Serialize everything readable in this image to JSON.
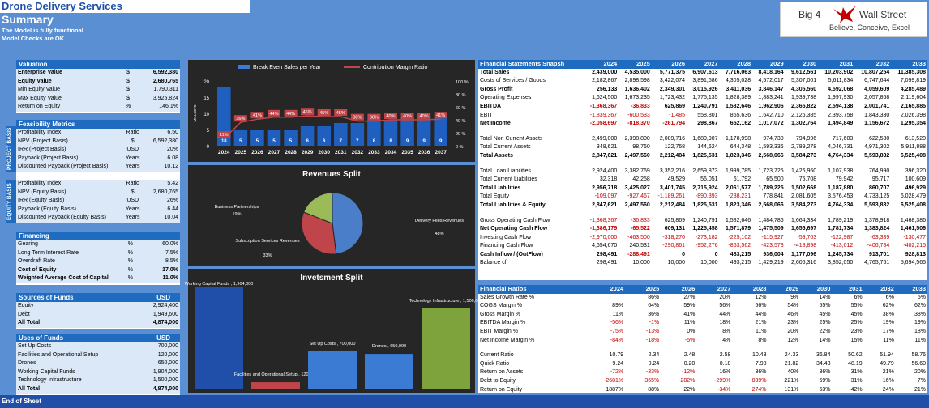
{
  "header": {
    "title": "Drone Delivery Services",
    "subtitle": "Summary",
    "note1": "The Model is fully functional",
    "note2": "Model Checks are OK"
  },
  "logo": {
    "left": "Big 4",
    "right": "Wall Street",
    "tagline": "Believe, Conceive, Excel"
  },
  "footer": "End of Sheet",
  "valuation": {
    "title": "Valuation",
    "rows": [
      {
        "label": "Enterprise Value",
        "unit": "$",
        "value": "6,592,380"
      },
      {
        "label": "Equity Value",
        "unit": "$",
        "value": "2,680,765"
      },
      {
        "label": "Min Equity Value",
        "unit": "$",
        "value": "1,790,311"
      },
      {
        "label": "Max Equity Value",
        "unit": "$",
        "value": "3,925,824"
      },
      {
        "label": "Return on Equity",
        "unit": "%",
        "value": "146.1%"
      }
    ]
  },
  "feasibility": {
    "title": "Feasibility Metrics",
    "project_label": "PROJECT BASIS",
    "equity_label": "EQUITY BASIS",
    "project": [
      {
        "label": "Profitability Index",
        "unit": "Ratio",
        "value": "6.50"
      },
      {
        "label": "NPV (Project Basis)",
        "unit": "$",
        "value": "6,592,380"
      },
      {
        "label": "IRR (Project Basis)",
        "unit": "USD",
        "value": "20%"
      },
      {
        "label": "Payback  (Project Basis)",
        "unit": "Years",
        "value": "6.08"
      },
      {
        "label": "Discounted Payback (Project Basis)",
        "unit": "Years",
        "value": "10.12"
      }
    ],
    "equity": [
      {
        "label": "Profitability Index",
        "unit": "Ratio",
        "value": "5.42"
      },
      {
        "label": "NPV (Equity Basis)",
        "unit": "$",
        "value": "2,680,765"
      },
      {
        "label": "IRR (Equity Basis)",
        "unit": "USD",
        "value": "26%"
      },
      {
        "label": "Payback  (Equity Basis)",
        "unit": "Years",
        "value": "6.44"
      },
      {
        "label": "Discounted Payback  (Equity Basis)",
        "unit": "Years",
        "value": "10.04"
      }
    ]
  },
  "financing": {
    "title": "Financing",
    "rows": [
      {
        "label": "Gearing",
        "unit": "%",
        "value": "60.0%"
      },
      {
        "label": "Long Term Interest Rate",
        "unit": "%",
        "value": "7.5%"
      },
      {
        "label": "Overdraft Rate",
        "unit": "%",
        "value": "8.5%"
      },
      {
        "label": "Cost of Equity",
        "unit": "%",
        "value": "17.0%"
      },
      {
        "label": "Weighted Average Cost of Capital",
        "unit": "%",
        "value": "11.0%"
      }
    ]
  },
  "sources": {
    "title": "Sources of Funds",
    "unit": "USD",
    "rows": [
      {
        "label": "Equity",
        "value": "2,924,400"
      },
      {
        "label": "Debt",
        "value": "1,949,600"
      },
      {
        "label": "All Total",
        "value": "4,874,000"
      }
    ]
  },
  "uses": {
    "title": "Uses of Funds",
    "unit": "USD",
    "rows": [
      {
        "label": "Set Up Costs",
        "value": "700,000"
      },
      {
        "label": "Facilities and Operational Setup",
        "value": "120,000"
      },
      {
        "label": "Drones",
        "value": "650,000"
      },
      {
        "label": "Working Capital Funds",
        "value": "1,904,000"
      },
      {
        "label": "Technology Infrastructure",
        "value": "1,500,000"
      },
      {
        "label": "All Total",
        "value": "4,874,000"
      }
    ]
  },
  "chart_data": [
    {
      "type": "bar",
      "title": "",
      "legend": [
        "Break Even Sales per Year",
        "Contribution Margin Ratio"
      ],
      "ylabel": "MILLIONS",
      "categories": [
        "2024",
        "2025",
        "2026",
        "2027",
        "2028",
        "2029",
        "2030",
        "2031",
        "2032",
        "2033",
        "2034",
        "2035",
        "2036",
        "2037"
      ],
      "bar_labels": [
        "18",
        "5",
        "5",
        "5",
        "5",
        "6",
        "6",
        "7",
        "7",
        "8",
        "8",
        "9",
        "9",
        "9"
      ],
      "bar_values": [
        18,
        5,
        5,
        5,
        5,
        6,
        6,
        7,
        7,
        8,
        8,
        9,
        9,
        9
      ],
      "line_labels": [
        "11%",
        "36%",
        "41%",
        "44%",
        "44%",
        "46%",
        "45%",
        "45%",
        "38%",
        "38%",
        "40%",
        "40%",
        "40%",
        "41%"
      ],
      "line_values": [
        11,
        36,
        41,
        44,
        44,
        46,
        45,
        45,
        38,
        38,
        40,
        40,
        40,
        41
      ],
      "y_ticks": [
        "20",
        "15",
        "10",
        "5",
        "0"
      ],
      "y2_ticks": [
        "100 %",
        "80 %",
        "60 %",
        "40 %",
        "20 %",
        "0 %"
      ]
    },
    {
      "type": "pie",
      "title": "Revenues Split",
      "slices": [
        {
          "name": "Delivery Fees Revenues",
          "value": 48,
          "label": "48%",
          "color": "#4a7ec9"
        },
        {
          "name": "Subscription Services Revenues",
          "value": 33,
          "label": "33%",
          "color": "#c0454a"
        },
        {
          "name": "Business Partnerships",
          "value": 19,
          "label": "19%",
          "color": "#9bbb59"
        }
      ]
    },
    {
      "type": "bar",
      "title": "Invetsment Split",
      "bars": [
        {
          "name": "Working Capital Funds",
          "value": 1904000,
          "label": "Working Capital Funds , 1,904,000",
          "color": "#1f4fa8"
        },
        {
          "name": "Facilities and Operational Setup",
          "value": 120000,
          "label": "Facilities and Operational Setup , 120,000",
          "color": "#c0454a"
        },
        {
          "name": "Set Up Costs",
          "value": 700000,
          "label": "Set Up Costs , 700,000",
          "color": "#3b7bd4"
        },
        {
          "name": "Drones",
          "value": 650000,
          "label": "Drones , 650,000",
          "color": "#3b7bd4"
        },
        {
          "name": "Technology Infrastructure",
          "value": 1500000,
          "label": "Technology Infrastructure , 1,500,000",
          "color": "#7ea33d"
        }
      ]
    }
  ],
  "fs": {
    "title": "Financial Statements Snapsh",
    "years": [
      "2024",
      "2025",
      "2026",
      "2027",
      "2028",
      "2029",
      "2030",
      "2031",
      "2032",
      "2033"
    ],
    "groups": [
      [
        {
          "label": "Total Sales",
          "b": true,
          "v": [
            "2,439,000",
            "4,535,000",
            "5,771,375",
            "6,907,613",
            "7,716,063",
            "8,418,164",
            "9,612,561",
            "10,203,902",
            "10,807,254",
            "11,385,308"
          ]
        },
        {
          "label": "Costs of Services / Goods",
          "v": [
            "2,182,867",
            "2,898,598",
            "3,422,074",
            "3,891,686",
            "4,305,028",
            "4,572,017",
            "5,307,001",
            "5,611,834",
            "6,747,644",
            "7,099,819"
          ]
        },
        {
          "label": "Gross Profit",
          "b": true,
          "v": [
            "256,133",
            "1,636,402",
            "2,349,301",
            "3,015,926",
            "3,411,036",
            "3,846,147",
            "4,305,560",
            "4,592,068",
            "4,059,609",
            "4,285,489"
          ]
        },
        {
          "label": "Operating Expenses",
          "v": [
            "1,624,500",
            "1,673,235",
            "1,723,432",
            "1,775,135",
            "1,828,389",
            "1,883,241",
            "1,939,738",
            "1,997,930",
            "2,057,868",
            "2,119,604"
          ]
        },
        {
          "label": "EBITDA",
          "b": true,
          "v": [
            "-1,368,367",
            "-36,833",
            "625,869",
            "1,240,791",
            "1,582,646",
            "1,962,906",
            "2,365,822",
            "2,594,138",
            "2,001,741",
            "2,165,885"
          ]
        },
        {
          "label": "EBIT",
          "v": [
            "-1,839,367",
            "-600,533",
            "-1,485",
            "558,801",
            "855,636",
            "1,642,710",
            "2,126,385",
            "2,393,758",
            "1,843,330",
            "2,026,398"
          ]
        },
        {
          "label": "Net Income",
          "b": true,
          "v": [
            "-2,058,697",
            "-818,370",
            "-261,794",
            "298,867",
            "652,162",
            "1,017,072",
            "1,302,764",
            "1,494,849",
            "1,156,672",
            "1,295,354"
          ]
        }
      ],
      [
        {
          "label": "Total Non Current Assets",
          "v": [
            "2,499,000",
            "2,398,800",
            "2,089,716",
            "1,680,907",
            "1,178,998",
            "974,730",
            "794,996",
            "717,603",
            "622,530",
            "613,520"
          ]
        },
        {
          "label": "Total Current Assets",
          "v": [
            "348,621",
            "98,760",
            "122,768",
            "144,624",
            "644,348",
            "1,593,336",
            "2,789,278",
            "4,046,731",
            "4,971,302",
            "5,911,888"
          ]
        },
        {
          "label": "Total Assets",
          "b": true,
          "v": [
            "2,847,621",
            "2,497,560",
            "2,212,484",
            "1,825,531",
            "1,823,346",
            "2,568,066",
            "3,584,273",
            "4,764,334",
            "5,593,832",
            "6,525,408"
          ]
        }
      ],
      [
        {
          "label": "Total Loan Liabilities",
          "v": [
            "2,924,400",
            "3,382,769",
            "3,352,216",
            "2,659,873",
            "1,999,785",
            "1,723,725",
            "1,426,960",
            "1,107,938",
            "764,990",
            "396,320"
          ]
        },
        {
          "label": "Total Current Liabilities",
          "v": [
            "32,318",
            "42,258",
            "49,529",
            "56,051",
            "61,792",
            "65,500",
            "75,708",
            "79,942",
            "95,717",
            "100,609"
          ]
        },
        {
          "label": "Total Liabilities",
          "b": true,
          "v": [
            "2,956,718",
            "3,425,027",
            "3,401,745",
            "2,715,924",
            "2,061,577",
            "1,789,225",
            "1,502,668",
            "1,187,880",
            "860,707",
            "496,929"
          ]
        },
        {
          "label": "Total Equity",
          "v": [
            "-109,097",
            "-927,467",
            "-1,189,261",
            "-890,393",
            "-238,231",
            "778,841",
            "2,081,605",
            "3,576,453",
            "4,733,125",
            "6,028,479"
          ]
        },
        {
          "label": "Total Liabilities & Equity",
          "b": true,
          "v": [
            "2,847,621",
            "2,497,560",
            "2,212,484",
            "1,825,531",
            "1,823,346",
            "2,568,066",
            "3,584,273",
            "4,764,334",
            "5,593,832",
            "6,525,408"
          ]
        }
      ],
      [
        {
          "label": "Gross Operating Cash Flow",
          "v": [
            "-1,368,367",
            "-36,833",
            "625,869",
            "1,240,791",
            "1,582,646",
            "1,484,786",
            "1,664,334",
            "1,789,219",
            "1,378,918",
            "1,468,386"
          ]
        },
        {
          "label": "Net Operating Cash Flow",
          "b": true,
          "v": [
            "-1,386,179",
            "-65,522",
            "609,131",
            "1,225,458",
            "1,571,879",
            "1,475,509",
            "1,655,697",
            "1,781,734",
            "1,383,824",
            "1,461,506"
          ]
        },
        {
          "label": "Investing Cash Flow",
          "v": [
            "-2,970,000",
            "-463,500",
            "-318,270",
            "-273,182",
            "-225,102",
            "-115,927",
            "-59,703",
            "-122,987",
            "-63,339",
            "-130,477"
          ]
        },
        {
          "label": "Financing Cash Flow",
          "v": [
            "4,654,670",
            "240,531",
            "-290,861",
            "-952,276",
            "-863,562",
            "-423,578",
            "-418,898",
            "-413,012",
            "-406,784",
            "-402,215"
          ]
        },
        {
          "label": "Cash Inflow / (OutFlow)",
          "b": true,
          "v": [
            "298,491",
            "-288,491",
            "0",
            "0",
            "483,215",
            "936,004",
            "1,177,096",
            "1,245,734",
            "913,701",
            "928,813"
          ]
        },
        {
          "label": "Balance cf",
          "v": [
            "298,491",
            "10,000",
            "10,000",
            "10,000",
            "493,215",
            "1,429,219",
            "2,606,316",
            "3,852,050",
            "4,765,751",
            "5,694,565"
          ]
        }
      ]
    ]
  },
  "ratios": {
    "title": "Financial Ratios",
    "years": [
      "2024",
      "2025",
      "2026",
      "2027",
      "2028",
      "2029",
      "2030",
      "2031",
      "2032",
      "2033"
    ],
    "groups": [
      [
        {
          "label": "Sales Growth Rate %",
          "v": [
            "",
            "86%",
            "27%",
            "20%",
            "12%",
            "9%",
            "14%",
            "6%",
            "6%",
            "5%"
          ]
        },
        {
          "label": "COGS Margin %",
          "v": [
            "89%",
            "64%",
            "59%",
            "56%",
            "56%",
            "54%",
            "55%",
            "55%",
            "62%",
            "62%"
          ]
        },
        {
          "label": "Gross Margin %",
          "v": [
            "11%",
            "36%",
            "41%",
            "44%",
            "44%",
            "46%",
            "45%",
            "45%",
            "38%",
            "38%"
          ]
        },
        {
          "label": "EBITDA Margin %",
          "v": [
            "-56%",
            "-1%",
            "11%",
            "18%",
            "21%",
            "23%",
            "25%",
            "25%",
            "19%",
            "19%"
          ]
        },
        {
          "label": "EBIT Margin %",
          "v": [
            "-75%",
            "-13%",
            "0%",
            "8%",
            "11%",
            "20%",
            "22%",
            "23%",
            "17%",
            "18%"
          ]
        },
        {
          "label": "Net Income Margin %",
          "v": [
            "-84%",
            "-18%",
            "-5%",
            "4%",
            "8%",
            "12%",
            "14%",
            "15%",
            "11%",
            "11%"
          ]
        }
      ],
      [
        {
          "label": "Current Ratio",
          "v": [
            "10.79",
            "2.34",
            "2.48",
            "2.58",
            "10.43",
            "24.33",
            "36.84",
            "50.62",
            "51.94",
            "58.76"
          ]
        },
        {
          "label": "Quick Ratio",
          "v": [
            "9.24",
            "0.24",
            "0.20",
            "0.18",
            "7.98",
            "21.82",
            "34.43",
            "48.19",
            "49.79",
            "56.60"
          ]
        },
        {
          "label": "Return on Assets",
          "v": [
            "-72%",
            "-33%",
            "-12%",
            "16%",
            "36%",
            "40%",
            "36%",
            "31%",
            "21%",
            "20%"
          ]
        },
        {
          "label": "Debt to Equity",
          "v": [
            "-2681%",
            "-365%",
            "-282%",
            "-299%",
            "-839%",
            "221%",
            "69%",
            "31%",
            "16%",
            "7%"
          ]
        },
        {
          "label": "Return on Equity",
          "v": [
            "1887%",
            "88%",
            "22%",
            "-34%",
            "-274%",
            "131%",
            "63%",
            "42%",
            "24%",
            "21%"
          ]
        }
      ]
    ]
  }
}
